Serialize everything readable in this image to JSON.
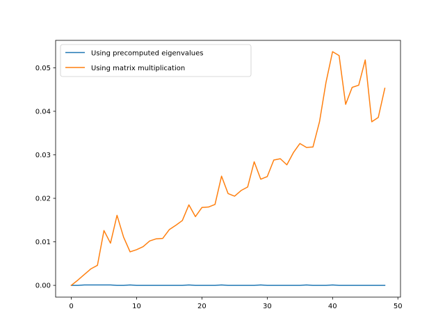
{
  "chart_data": {
    "type": "line",
    "title": "",
    "xlabel": "",
    "ylabel": "",
    "xlim": [
      -2.4,
      50.4
    ],
    "ylim": [
      -0.0027,
      0.0563
    ],
    "xticks": [
      0,
      10,
      20,
      30,
      40,
      50
    ],
    "xtick_labels": [
      "0",
      "10",
      "20",
      "30",
      "40",
      "50"
    ],
    "yticks": [
      0.0,
      0.01,
      0.02,
      0.03,
      0.04,
      0.05
    ],
    "ytick_labels": [
      "0.00",
      "0.01",
      "0.02",
      "0.03",
      "0.04",
      "0.05"
    ],
    "grid": false,
    "legend_position": "upper-left",
    "x": [
      0,
      1,
      2,
      3,
      4,
      5,
      6,
      7,
      8,
      9,
      10,
      11,
      12,
      13,
      14,
      15,
      16,
      17,
      18,
      19,
      20,
      21,
      22,
      23,
      24,
      25,
      26,
      27,
      28,
      29,
      30,
      31,
      32,
      33,
      34,
      35,
      36,
      37,
      38,
      39,
      40,
      41,
      42,
      43,
      44,
      45,
      46,
      47,
      48
    ],
    "series": [
      {
        "name": "Using precomputed eigenvalues",
        "color": "#1f77b4",
        "values": [
          0.0,
          0.0,
          0.0001,
          0.0001,
          0.0001,
          0.0001,
          0.0001,
          0.0,
          0.0,
          0.0001,
          0.0,
          0.0,
          0.0,
          0.0,
          0.0,
          0.0,
          0.0,
          0.0,
          0.0001,
          0.0,
          0.0,
          0.0,
          0.0,
          0.0001,
          0.0,
          0.0,
          0.0,
          0.0,
          0.0,
          0.0001,
          0.0,
          0.0,
          0.0,
          0.0,
          0.0,
          0.0,
          0.0001,
          0.0,
          0.0,
          0.0,
          0.0001,
          0.0,
          0.0,
          0.0,
          0.0,
          0.0,
          0.0,
          0.0,
          0.0
        ]
      },
      {
        "name": "Using matrix multiplication",
        "color": "#ff7f0e",
        "values": [
          0.0,
          0.0012,
          0.0025,
          0.0038,
          0.0046,
          0.0126,
          0.0097,
          0.0161,
          0.0111,
          0.0077,
          0.0082,
          0.0089,
          0.0102,
          0.0107,
          0.0108,
          0.0128,
          0.0138,
          0.0149,
          0.0185,
          0.0158,
          0.0179,
          0.018,
          0.0186,
          0.0251,
          0.0211,
          0.0205,
          0.0218,
          0.0226,
          0.0284,
          0.0244,
          0.025,
          0.0288,
          0.0291,
          0.0277,
          0.0305,
          0.0326,
          0.0317,
          0.0318,
          0.0376,
          0.0467,
          0.0537,
          0.0528,
          0.0416,
          0.0455,
          0.046,
          0.0518,
          0.0376,
          0.0386,
          0.0453
        ]
      }
    ]
  }
}
